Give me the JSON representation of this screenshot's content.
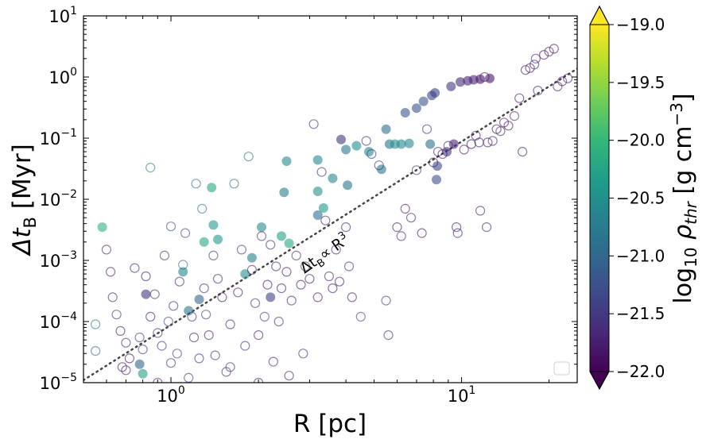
{
  "chart_data": {
    "type": "scatter",
    "xscale": "log",
    "yscale": "log",
    "xlim": [
      0.5,
      25
    ],
    "ylim": [
      1e-05,
      10
    ],
    "xlabel": "R [pc]",
    "ylabel": {
      "base": "Δt",
      "sub": "B",
      "unit": " [Myr]"
    },
    "xticks": [
      {
        "value": 1,
        "base": "10",
        "exp": "0"
      },
      {
        "value": 10,
        "base": "10",
        "exp": "1"
      }
    ],
    "yticks": [
      {
        "value": 1e-05,
        "base": "10",
        "exp": "−5"
      },
      {
        "value": 0.0001,
        "base": "10",
        "exp": "−4"
      },
      {
        "value": 0.001,
        "base": "10",
        "exp": "−3"
      },
      {
        "value": 0.01,
        "base": "10",
        "exp": "−2"
      },
      {
        "value": 0.1,
        "base": "10",
        "exp": "−1"
      },
      {
        "value": 1,
        "base": "10",
        "exp": "0"
      },
      {
        "value": 10,
        "base": "10",
        "exp": "1"
      }
    ],
    "colorbar": {
      "label": {
        "pre": "log",
        "sub": "10",
        "mid": " ρ",
        "sub2": "thr",
        "unit": " [g cm",
        "sup": "−3",
        "close": "]"
      },
      "range": [
        -22.0,
        -19.0
      ],
      "ticks": [
        {
          "value": -22.0,
          "label": "−22.0"
        },
        {
          "value": -21.5,
          "label": "−21.5"
        },
        {
          "value": -21.0,
          "label": "−21.0"
        },
        {
          "value": -20.5,
          "label": "−20.5"
        },
        {
          "value": -20.0,
          "label": "−20.0"
        },
        {
          "value": -19.5,
          "label": "−19.5"
        },
        {
          "value": -19.0,
          "label": "−19.0"
        }
      ],
      "stops": [
        "#440154",
        "#482878",
        "#3e4989",
        "#31688e",
        "#26828e",
        "#1f9e89",
        "#35b779",
        "#6ece58",
        "#b5de2b",
        "#fde725"
      ]
    },
    "reference_line": {
      "label": {
        "base": "Δt",
        "sub": "B",
        "rel": "∝ R",
        "sup": "3"
      },
      "x": [
        0.5,
        25
      ],
      "y": [
        1.1e-05,
        1.37
      ],
      "style": "dotted",
      "color": "#444444"
    },
    "legend": {
      "position": "lower right",
      "entries": []
    },
    "series": [
      {
        "name": "filled",
        "marker": "filled-circle",
        "points": [
          [
            0.58,
            0.0035,
            -20.1
          ],
          [
            0.82,
            0.00028,
            -21.5
          ],
          [
            0.78,
            2e-05,
            -21.0
          ],
          [
            0.8,
            1.4e-05,
            -20.3
          ],
          [
            1.1,
            0.00065,
            -20.6
          ],
          [
            1.15,
            0.00015,
            -20.8
          ],
          [
            1.25,
            0.00023,
            -21.0
          ],
          [
            1.3,
            0.002,
            -20.2
          ],
          [
            1.38,
            0.0155,
            -20.2
          ],
          [
            1.4,
            0.0038,
            -20.4
          ],
          [
            1.45,
            0.0022,
            -20.4
          ],
          [
            1.8,
            0.0006,
            -20.5
          ],
          [
            1.9,
            0.0011,
            -20.7
          ],
          [
            2.05,
            0.0035,
            -20.5
          ],
          [
            2.2,
            0.00025,
            -21.4
          ],
          [
            2.5,
            0.042,
            -20.6
          ],
          [
            2.45,
            0.013,
            -20.7
          ],
          [
            2.4,
            0.0025,
            -20.3
          ],
          [
            2.55,
            0.0019,
            -20.2
          ],
          [
            3.2,
            0.0135,
            -20.5
          ],
          [
            3.35,
            0.0072,
            -20.4
          ],
          [
            3.2,
            0.0055,
            -20.9
          ],
          [
            3.2,
            0.044,
            -20.6
          ],
          [
            3.6,
            0.022,
            -20.6
          ],
          [
            4.05,
            0.017,
            -20.8
          ],
          [
            3.85,
            0.095,
            -21.5
          ],
          [
            4.0,
            0.065,
            -20.8
          ],
          [
            4.35,
            0.075,
            -20.5
          ],
          [
            4.8,
            0.06,
            -20.6
          ],
          [
            5.3,
            0.031,
            -20.8
          ],
          [
            5.5,
            0.14,
            -20.9
          ],
          [
            5.65,
            0.08,
            -20.8
          ],
          [
            5.9,
            0.08,
            -20.5
          ],
          [
            6.2,
            0.08,
            -20.6
          ],
          [
            6.4,
            0.26,
            -21.2
          ],
          [
            6.6,
            0.082,
            -20.6
          ],
          [
            7.0,
            0.31,
            -21.2
          ],
          [
            7.4,
            0.4,
            -21.2
          ],
          [
            7.9,
            0.5,
            -21.4
          ],
          [
            8.1,
            0.55,
            -21.4
          ],
          [
            7.8,
            0.08,
            -20.9
          ],
          [
            8.25,
            0.035,
            -21.3
          ],
          [
            8.2,
            0.021,
            -21.3
          ],
          [
            8.9,
            0.06,
            -21.5
          ],
          [
            9.2,
            0.7,
            -21.5
          ],
          [
            9.4,
            0.08,
            -21.7
          ],
          [
            9.9,
            0.83,
            -21.6
          ],
          [
            10.5,
            0.87,
            -21.7
          ],
          [
            11.0,
            0.9,
            -21.7
          ],
          [
            11.6,
            0.92,
            -21.8
          ],
          [
            12.5,
            0.95,
            -21.8
          ]
        ]
      },
      {
        "name": "open",
        "marker": "open-circle",
        "points": [
          [
            0.55,
            9e-05,
            -20.8
          ],
          [
            0.55,
            3.3e-05,
            -21.0
          ],
          [
            0.6,
            0.0015,
            -21.7
          ],
          [
            0.62,
            0.00065,
            -21.8
          ],
          [
            0.63,
            0.00025,
            -21.7
          ],
          [
            0.65,
            0.00013,
            -21.6
          ],
          [
            0.67,
            7e-05,
            -21.8
          ],
          [
            0.7,
            4.5e-05,
            -21.7
          ],
          [
            0.72,
            2.5e-05,
            -21.9
          ],
          [
            0.7,
            1.6e-05,
            -21.8
          ],
          [
            0.75,
            0.00075,
            -21.7
          ],
          [
            0.78,
            5.5e-05,
            -21.5
          ],
          [
            0.8,
            3.5e-05,
            -21.6
          ],
          [
            0.82,
            0.00055,
            -21.8
          ],
          [
            0.85,
            0.033,
            -20.8
          ],
          [
            0.85,
            0.00012,
            -21.8
          ],
          [
            0.88,
            0.00028,
            -21.6
          ],
          [
            0.9,
            6.5e-05,
            -21.7
          ],
          [
            0.93,
            4e-05,
            -21.5
          ],
          [
            0.95,
            0.0012,
            -21.7
          ],
          [
            0.98,
            0.0001,
            -21.4
          ],
          [
            1.0,
            0.0036,
            -21.3
          ],
          [
            1.0,
            2.1e-05,
            -21.6
          ],
          [
            1.02,
            0.00018,
            -21.7
          ],
          [
            1.05,
            3e-05,
            -21.4
          ],
          [
            1.07,
            0.00045,
            -21.7
          ],
          [
            1.1,
            0.00085,
            -20.9
          ],
          [
            1.12,
            0.0028,
            -21.4
          ],
          [
            1.15,
            1.2e-05,
            -21.6
          ],
          [
            1.18,
            0.00012,
            -21.6
          ],
          [
            1.2,
            5.5e-05,
            -21.8
          ],
          [
            1.22,
            0.018,
            -21.0
          ],
          [
            1.25,
            2.5e-05,
            -21.7
          ],
          [
            1.28,
            0.007,
            -20.9
          ],
          [
            1.3,
            0.00035,
            -21.7
          ],
          [
            1.32,
            0.00013,
            -21.5
          ],
          [
            1.35,
            6e-05,
            -21.8
          ],
          [
            1.4,
            0.0012,
            -21.6
          ],
          [
            1.42,
            2.8e-05,
            -21.6
          ],
          [
            1.45,
            0.0005,
            -21.7
          ],
          [
            1.5,
            0.00025,
            -21.8
          ],
          [
            1.55,
            1.5e-05,
            -21.7
          ],
          [
            1.6,
            9e-05,
            -21.7
          ],
          [
            1.65,
            0.018,
            -21.0
          ],
          [
            1.7,
            0.0003,
            -21.8
          ],
          [
            1.75,
            0.0015,
            -21.6
          ],
          [
            1.8,
            4e-05,
            -21.6
          ],
          [
            1.85,
            0.05,
            -20.9
          ],
          [
            1.9,
            0.0007,
            -21.8
          ],
          [
            1.95,
            0.0002,
            -21.7
          ],
          [
            2.0,
            6e-05,
            -21.8
          ],
          [
            2.05,
            0.0025,
            -21.7
          ],
          [
            2.1,
            0.00012,
            -21.5
          ],
          [
            2.15,
            0.0004,
            -21.8
          ],
          [
            2.2,
            0.0018,
            -21.7
          ],
          [
            2.25,
            2.2e-05,
            -21.7
          ],
          [
            2.3,
            0.0008,
            -21.7
          ],
          [
            2.35,
            0.0001,
            -21.6
          ],
          [
            2.4,
            0.00035,
            -21.8
          ],
          [
            2.5,
            0.00065,
            -21.8
          ],
          [
            2.55,
            1.3e-05,
            -21.7
          ],
          [
            2.6,
            0.00022,
            -21.7
          ],
          [
            2.7,
            0.0012,
            -21.7
          ],
          [
            2.8,
            0.0004,
            -21.8
          ],
          [
            2.85,
            3e-05,
            -21.6
          ],
          [
            2.9,
            0.0008,
            -21.7
          ],
          [
            3.0,
            0.0005,
            -21.8
          ],
          [
            3.1,
            0.17,
            -21.6
          ],
          [
            3.2,
            0.00025,
            -21.8
          ],
          [
            3.3,
            0.028,
            -21.6
          ],
          [
            3.4,
            0.0045,
            -21.7
          ],
          [
            3.5,
            0.00055,
            -21.7
          ],
          [
            3.6,
            0.00035,
            -21.8
          ],
          [
            3.7,
            0.0015,
            -21.7
          ],
          [
            3.8,
            0.00045,
            -21.8
          ],
          [
            4.0,
            0.0035,
            -21.7
          ],
          [
            4.1,
            0.0008,
            -21.6
          ],
          [
            4.2,
            0.00025,
            -21.8
          ],
          [
            4.5,
            0.00012,
            -21.4
          ],
          [
            4.7,
            0.09,
            -21.6
          ],
          [
            4.9,
            0.055,
            -21.5
          ],
          [
            5.2,
            0.036,
            -21.6
          ],
          [
            5.5,
            0.00022,
            -21.5
          ],
          [
            5.6,
            6e-05,
            -21.6
          ],
          [
            6.0,
            0.0035,
            -21.8
          ],
          [
            6.2,
            0.0025,
            -21.7
          ],
          [
            6.4,
            0.007,
            -21.8
          ],
          [
            6.7,
            0.005,
            -21.7
          ],
          [
            7.0,
            0.03,
            -21.6
          ],
          [
            7.3,
            0.0028,
            -21.8
          ],
          [
            7.6,
            0.14,
            -21.6
          ],
          [
            8.0,
            0.04,
            -21.8
          ],
          [
            8.3,
            0.06,
            -21.7
          ],
          [
            8.6,
            0.055,
            -21.8
          ],
          [
            9.0,
            0.075,
            -21.7
          ],
          [
            9.6,
            0.0035,
            -21.8
          ],
          [
            9.7,
            0.0028,
            -21.7
          ],
          [
            10.2,
            0.065,
            -21.8
          ],
          [
            10.8,
            0.08,
            -21.8
          ],
          [
            11.2,
            0.11,
            -21.7
          ],
          [
            11.5,
            0.085,
            -21.8
          ],
          [
            11.6,
            0.0065,
            -21.8
          ],
          [
            12.2,
            0.0035,
            -21.7
          ],
          [
            12.0,
            1.0,
            -21.8
          ],
          [
            12.3,
            0.085,
            -21.8
          ],
          [
            12.8,
            0.09,
            -21.7
          ],
          [
            13.2,
            0.14,
            -21.8
          ],
          [
            13.6,
            0.13,
            -21.7
          ],
          [
            14.0,
            0.18,
            -21.8
          ],
          [
            14.5,
            0.16,
            -21.8
          ],
          [
            15.2,
            0.23,
            -21.7
          ],
          [
            15.8,
            0.45,
            -21.8
          ],
          [
            16.6,
            1.3,
            -21.8
          ],
          [
            17.2,
            1.4,
            -21.8
          ],
          [
            17.8,
            1.6,
            -21.8
          ],
          [
            18.3,
            0.6,
            -21.8
          ],
          [
            19.2,
            2.3,
            -21.8
          ],
          [
            20.0,
            2.6,
            -21.7
          ],
          [
            20.8,
            2.9,
            -21.8
          ],
          [
            21.4,
            0.7,
            -21.8
          ],
          [
            22.2,
            0.85,
            -21.8
          ],
          [
            23.2,
            0.95,
            -21.8
          ],
          [
            18.0,
            2.0,
            -21.7
          ],
          [
            16.2,
            0.06,
            -21.8
          ],
          [
            0.68,
            1.8e-05,
            -21.8
          ],
          [
            0.9,
            1e-05,
            -21.7
          ],
          [
            1.6,
            1.8e-05,
            -21.6
          ],
          [
            2.0,
            1e-05,
            -21.8
          ]
        ]
      }
    ]
  }
}
